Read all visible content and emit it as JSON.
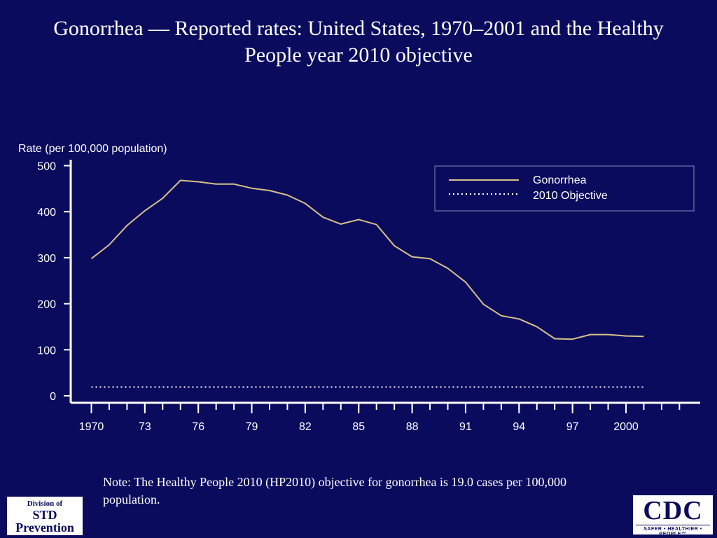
{
  "title": "Gonorrhea — Reported rates: United States, 1970–2001 and the Healthy People year 2010 objective",
  "note": "Note: The Healthy People 2010 (HP2010) objective for gonorrhea is 19.0 cases per 100,000 population.",
  "logos": {
    "std": {
      "line1": "Division of",
      "line2": "STD",
      "line3": "Prevention"
    },
    "cdc": {
      "name": "CDC",
      "tagline": "SAFER • HEALTHIER • PEOPLE™"
    }
  },
  "colors": {
    "background": "#0b0b5e",
    "gonorrhea_line": "#d8bf8a",
    "objective_line": "#ffffff",
    "axes": "#ffffff"
  },
  "chart_data": {
    "type": "line",
    "title": "",
    "xlabel": "",
    "ylabel": "Rate (per 100,000 population)",
    "ylim": [
      0,
      500
    ],
    "xlim": [
      1970,
      2003
    ],
    "y_ticks": [
      0,
      100,
      200,
      300,
      400,
      500
    ],
    "x_ticks": [
      1970,
      1973,
      1976,
      1979,
      1982,
      1985,
      1988,
      1991,
      1994,
      1997,
      2000
    ],
    "x_tick_labels": [
      "1970",
      "73",
      "76",
      "79",
      "82",
      "85",
      "88",
      "91",
      "94",
      "97",
      "2000"
    ],
    "grid": false,
    "legend": {
      "placement": "top-right",
      "entries": [
        "Gonorrhea",
        "2010 Objective"
      ]
    },
    "series": [
      {
        "name": "Gonorrhea",
        "style": "solid",
        "x": [
          1970,
          1971,
          1972,
          1973,
          1974,
          1975,
          1976,
          1977,
          1978,
          1979,
          1980,
          1981,
          1982,
          1983,
          1984,
          1985,
          1986,
          1987,
          1988,
          1989,
          1990,
          1991,
          1992,
          1993,
          1994,
          1995,
          1996,
          1997,
          1998,
          1999,
          2000,
          2001
        ],
        "y": [
          298,
          328,
          370,
          402,
          429,
          468,
          465,
          460,
          460,
          451,
          446,
          436,
          418,
          388,
          373,
          383,
          372,
          326,
          302,
          298,
          277,
          247,
          199,
          174,
          167,
          150,
          124,
          123,
          133,
          133,
          130,
          129
        ]
      },
      {
        "name": "2010 Objective",
        "style": "dotted",
        "x": [
          1970,
          2001
        ],
        "y": [
          19,
          19
        ]
      }
    ]
  }
}
